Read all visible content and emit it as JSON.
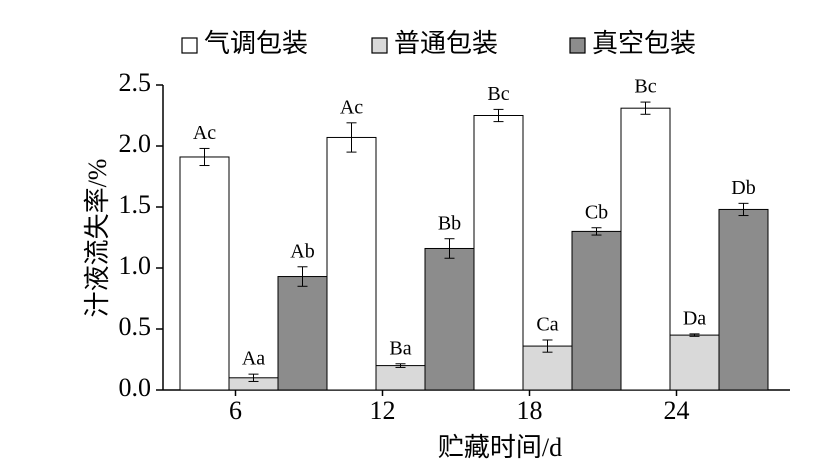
{
  "chart_data": {
    "type": "bar",
    "xlabel": "贮藏时间/d",
    "ylabel": "汁液流失率/%",
    "categories": [
      "6",
      "12",
      "18",
      "24"
    ],
    "series": [
      {
        "name": "气调包装",
        "color": "#ffffff",
        "values": [
          1.91,
          2.07,
          2.25,
          2.31
        ],
        "errors": [
          0.07,
          0.12,
          0.05,
          0.05
        ],
        "labels": [
          "Ac",
          "Ac",
          "Bc",
          "Bc"
        ]
      },
      {
        "name": "普通包装",
        "color": "#d9d9d9",
        "values": [
          0.1,
          0.2,
          0.36,
          0.45
        ],
        "errors": [
          0.03,
          0.015,
          0.05,
          0.01
        ],
        "labels": [
          "Aa",
          "Ba",
          "Ca",
          "Da"
        ]
      },
      {
        "name": "真空包装",
        "color": "#8c8c8c",
        "values": [
          0.93,
          1.16,
          1.3,
          1.48
        ],
        "errors": [
          0.08,
          0.08,
          0.03,
          0.05
        ],
        "labels": [
          "Ab",
          "Bb",
          "Cb",
          "Db"
        ]
      }
    ],
    "ylim": [
      0,
      2.5
    ],
    "yticks": [
      {
        "value": 0,
        "label": "0.0"
      },
      0.5,
      {
        "value": 1,
        "label": "1.0"
      },
      1.5,
      {
        "value": 2,
        "label": "2.0"
      },
      2.5
    ],
    "legend": "top"
  }
}
